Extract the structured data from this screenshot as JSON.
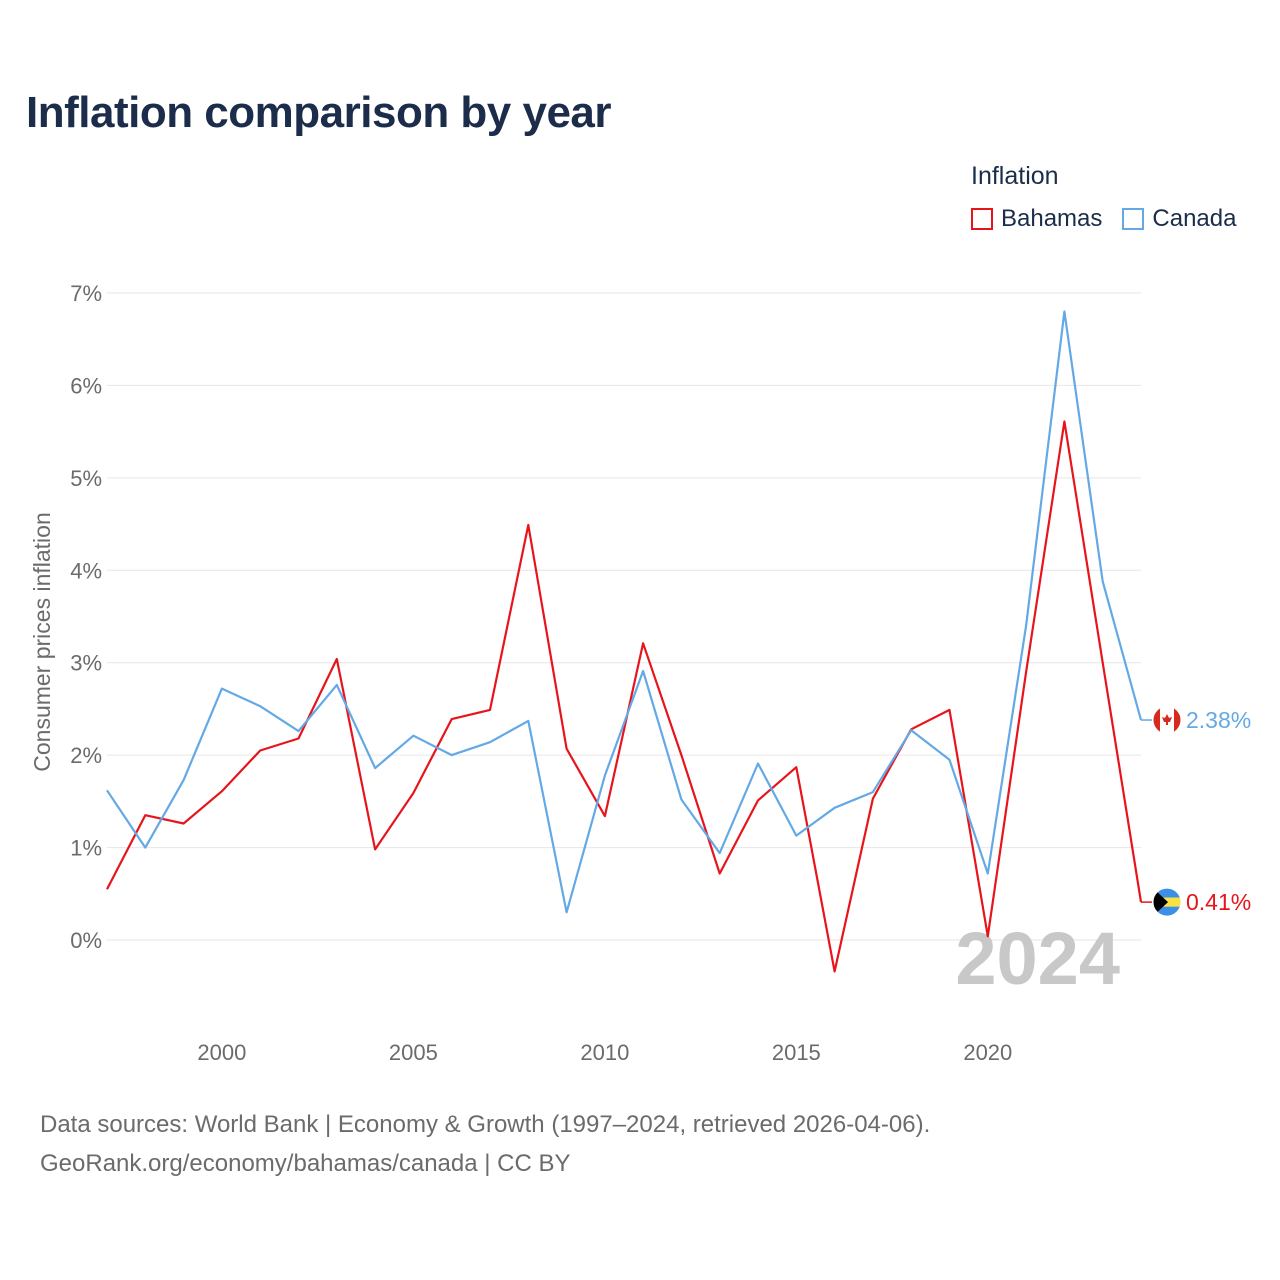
{
  "title": "Inflation comparison by year",
  "legend": {
    "title": "Inflation",
    "items": [
      {
        "label": "Bahamas",
        "color": "#e8141c"
      },
      {
        "label": "Canada",
        "color": "#64a9e5"
      }
    ]
  },
  "chart_data": {
    "type": "line",
    "title": "Inflation comparison by year",
    "ylabel": "Consumer prices inflation",
    "xlabel": "",
    "x": [
      1997,
      1998,
      1999,
      2000,
      2001,
      2002,
      2003,
      2004,
      2005,
      2006,
      2007,
      2008,
      2009,
      2010,
      2011,
      2012,
      2013,
      2014,
      2015,
      2016,
      2017,
      2018,
      2019,
      2020,
      2021,
      2022,
      2023,
      2024
    ],
    "xlim": [
      1997,
      2024
    ],
    "ylim": [
      -1,
      7
    ],
    "x_ticks": [
      2000,
      2005,
      2010,
      2015,
      2020
    ],
    "y_ticks": [
      0,
      1,
      2,
      3,
      4,
      5,
      6,
      7
    ],
    "y_tick_labels": [
      "0%",
      "1%",
      "2%",
      "3%",
      "4%",
      "5%",
      "6%",
      "7%"
    ],
    "x_tick_labels": [
      "2000",
      "2005",
      "2010",
      "2015",
      "2020"
    ],
    "grid": true,
    "legend_position": "top-right",
    "year_watermark": "2024",
    "series": [
      {
        "name": "Bahamas",
        "color": "#e8141c",
        "values": [
          0.55,
          1.35,
          1.26,
          1.61,
          2.05,
          2.18,
          3.04,
          0.98,
          1.59,
          2.39,
          2.49,
          4.49,
          2.07,
          1.34,
          3.21,
          2.0,
          0.72,
          1.51,
          1.87,
          -0.34,
          1.53,
          2.28,
          2.49,
          0.04,
          2.9,
          5.61,
          3.0,
          0.41
        ],
        "end_label": "0.41%"
      },
      {
        "name": "Canada",
        "color": "#64a9e5",
        "values": [
          1.62,
          1.0,
          1.73,
          2.72,
          2.53,
          2.26,
          2.76,
          1.86,
          2.21,
          2.0,
          2.14,
          2.37,
          0.3,
          1.78,
          2.91,
          1.52,
          0.94,
          1.91,
          1.13,
          1.43,
          1.6,
          2.27,
          1.95,
          0.72,
          3.4,
          6.8,
          3.88,
          2.38
        ],
        "end_label": "2.38%"
      }
    ]
  },
  "source": {
    "line1": "Data sources: World Bank | Economy & Growth (1997–2024, retrieved 2026-04-06).",
    "line2": "GeoRank.org/economy/bahamas/canada | CC BY"
  }
}
